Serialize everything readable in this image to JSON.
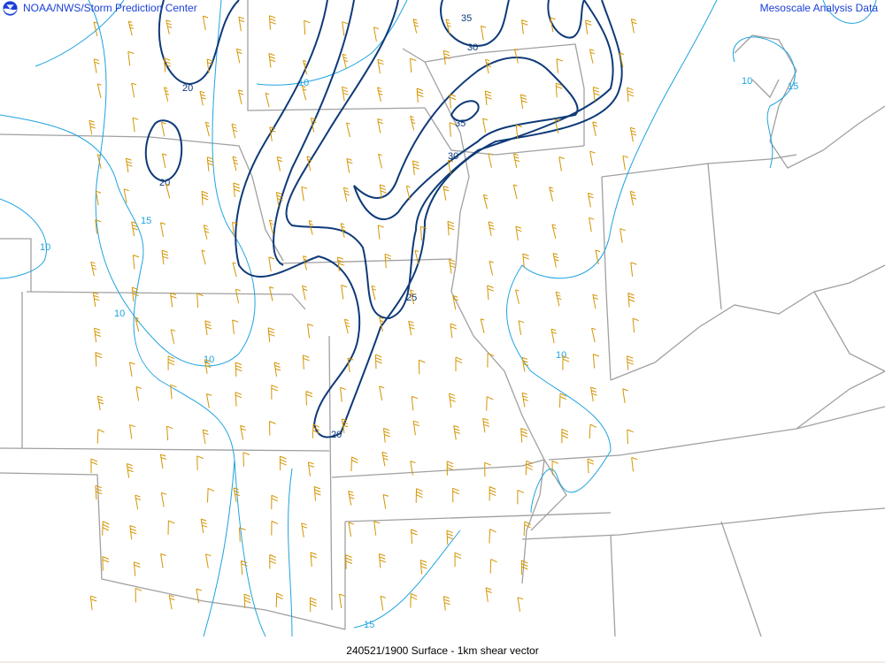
{
  "header": {
    "left_title": "NOAA/NWS/Storm Prediction Center",
    "right_title": "Mesoscale Analysis Data",
    "logo_icon": "noaa-logo-icon"
  },
  "footer": {
    "caption": "240521/1900 Surface - 1km shear vector"
  },
  "colors": {
    "header_text": "#1a3fd6",
    "border": "#a0a0a0",
    "contour_strong": "#0e3a78",
    "contour_weak": "#1fa3e0",
    "barb": "#d49400"
  },
  "contours": {
    "strong_labels": [
      "35",
      "30",
      "20",
      "35",
      "30",
      "20",
      "25",
      "20"
    ],
    "weak_labels": [
      "10",
      "10",
      "15",
      "15",
      "10",
      "10",
      "10",
      "10",
      "15"
    ]
  }
}
